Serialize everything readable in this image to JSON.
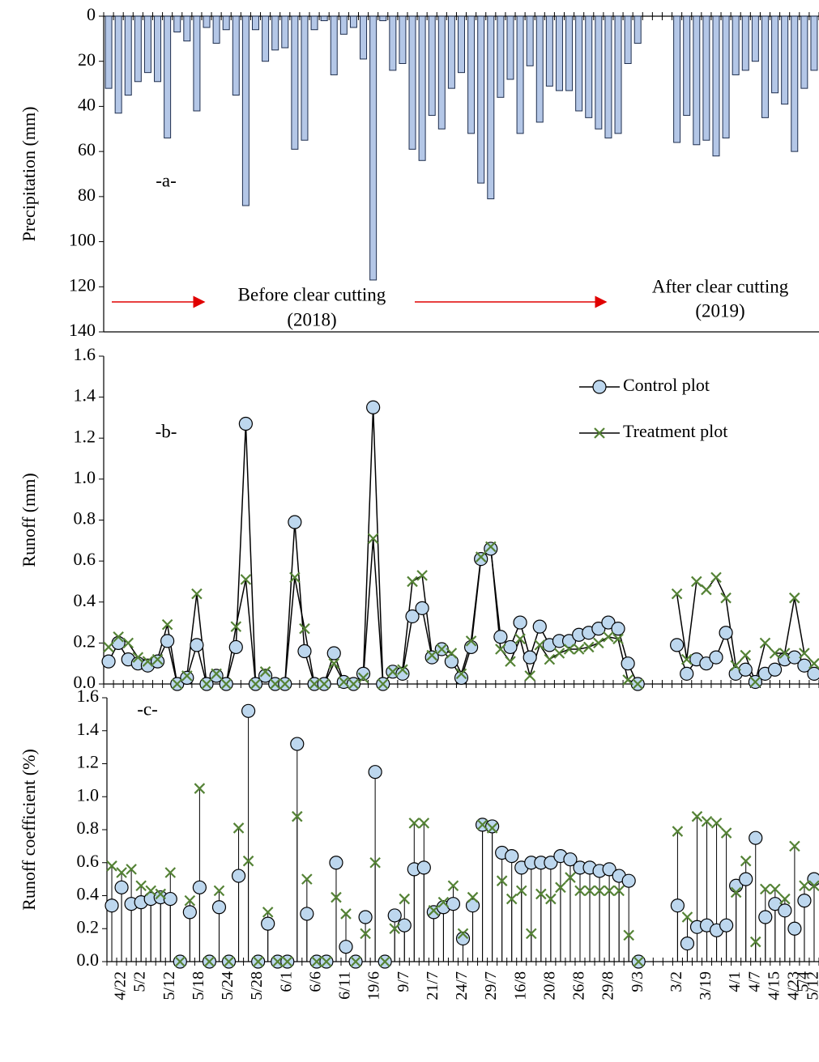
{
  "chart_data": [
    {
      "type": "bar",
      "y_label": "Precipitation (mm)",
      "yaxis_reversed": true,
      "annotations": [
        "-a-",
        "Before clear cutting",
        "(2018)",
        "After clear cutting",
        "(2019)"
      ],
      "color": "#b4c7e7",
      "values": [
        32,
        43,
        35,
        29,
        25,
        29,
        54,
        7,
        11,
        42,
        5,
        12,
        6,
        35,
        84,
        6,
        20,
        15,
        14,
        59,
        55,
        6,
        2,
        26,
        8,
        5,
        19,
        117,
        2,
        24,
        21,
        59,
        64,
        44,
        50,
        32,
        25,
        52,
        74,
        81,
        36,
        28,
        52,
        22,
        47,
        31,
        33,
        33,
        42,
        45,
        50,
        54,
        52,
        21,
        12,
        null,
        null,
        null,
        56,
        44,
        57,
        55,
        62,
        54,
        26,
        24,
        20,
        45,
        34,
        39,
        60,
        32,
        24
      ],
      "ylim": [
        0,
        140
      ],
      "yticks": [
        0,
        20,
        40,
        60,
        80,
        100,
        120,
        140
      ]
    },
    {
      "type": "line",
      "y_label": "Runoff (mm)",
      "annotations": [
        "-b-"
      ],
      "legend": "upper right",
      "series": [
        {
          "name": "Control plot",
          "color": "#bdd7ee",
          "line_color": "#000000",
          "marker": "o",
          "values": [
            0.11,
            0.2,
            0.12,
            0.1,
            0.09,
            0.11,
            0.21,
            0,
            0.03,
            0.19,
            0,
            0.04,
            0,
            0.18,
            1.27,
            0,
            0.04,
            0,
            0,
            0.79,
            0.16,
            0,
            0,
            0.15,
            0.01,
            0,
            0.05,
            1.35,
            0,
            0.06,
            0.05,
            0.33,
            0.37,
            0.13,
            0.17,
            0.11,
            0.03,
            0.18,
            0.61,
            0.66,
            0.23,
            0.18,
            0.3,
            0.13,
            0.28,
            0.19,
            0.21,
            0.21,
            0.24,
            0.25,
            0.27,
            0.3,
            0.27,
            0.1,
            0,
            null,
            null,
            null,
            0.19,
            0.05,
            0.12,
            0.1,
            0.13,
            0.25,
            0.05,
            0.07,
            0.01,
            0.05,
            0.07,
            0.12,
            0.13,
            0.09,
            0.05
          ]
        },
        {
          "name": "Treatment plot",
          "color": "#548235",
          "line_color": "#000000",
          "marker": "x",
          "values": [
            0.18,
            0.23,
            0.2,
            0.13,
            0.11,
            0.12,
            0.29,
            0,
            0.04,
            0.44,
            0,
            0.05,
            0,
            0.28,
            0.51,
            0,
            0.06,
            0,
            0,
            0.52,
            0.27,
            0,
            0,
            0.1,
            0.01,
            0,
            0.03,
            0.71,
            0,
            0.06,
            0.07,
            0.5,
            0.53,
            0.14,
            0.17,
            0.15,
            0.05,
            0.21,
            0.62,
            0.67,
            0.17,
            0.11,
            0.22,
            0.04,
            0.19,
            0.12,
            0.15,
            0.17,
            0.17,
            0.18,
            0.2,
            0.23,
            0.22,
            0.02,
            0,
            null,
            null,
            null,
            0.44,
            0.12,
            0.5,
            0.46,
            0.52,
            0.42,
            0.09,
            0.14,
            0.01,
            0.2,
            0.15,
            0.15,
            0.42,
            0.15,
            0.1
          ]
        }
      ],
      "ylim": [
        0,
        1.6
      ],
      "yticks": [
        {
          "value": 0,
          "label": "0.0"
        },
        0.2,
        0.4,
        0.6,
        0.8,
        {
          "value": 1,
          "label": "1.0"
        },
        1.2,
        1.4,
        1.6
      ]
    },
    {
      "type": "stem",
      "y_label": "Runoff coefficient (%)",
      "annotations": [
        "-c-"
      ],
      "categories": [
        null,
        "4/22",
        null,
        "5/2",
        null,
        null,
        "5/12",
        null,
        null,
        "5/18",
        null,
        null,
        "5/24",
        null,
        null,
        "5/28",
        null,
        null,
        "6/1",
        null,
        null,
        "6/6",
        null,
        null,
        "6/11",
        null,
        null,
        "19/6",
        null,
        null,
        "9/7",
        null,
        null,
        "21/7",
        null,
        null,
        "24/7",
        null,
        null,
        "29/7",
        null,
        null,
        "16/8",
        null,
        null,
        "20/8",
        null,
        null,
        "26/8",
        null,
        null,
        "29/8",
        null,
        null,
        "9/3",
        null,
        null,
        null,
        "3/2",
        null,
        null,
        "3/19",
        null,
        null,
        "4/1",
        null,
        "4/7",
        null,
        "4/15",
        null,
        "4/23",
        "5/4",
        "5/12"
      ],
      "series": [
        {
          "color": "#bdd7ee",
          "marker": "o",
          "values": [
            0.34,
            0.45,
            0.35,
            0.36,
            0.38,
            0.39,
            0.38,
            0,
            0.3,
            0.45,
            0,
            0.33,
            0,
            0.52,
            1.52,
            0,
            0.23,
            0,
            0,
            1.32,
            0.29,
            0,
            0,
            0.6,
            0.09,
            0,
            0.27,
            1.15,
            0,
            0.28,
            0.22,
            0.56,
            0.57,
            0.3,
            0.33,
            0.35,
            0.14,
            0.34,
            0.83,
            0.82,
            0.66,
            0.64,
            0.57,
            0.6,
            0.6,
            0.6,
            0.64,
            0.62,
            0.57,
            0.57,
            0.55,
            0.56,
            0.52,
            0.49,
            0,
            null,
            null,
            null,
            0.34,
            0.11,
            0.21,
            0.22,
            0.19,
            0.22,
            0.46,
            0.5,
            0.75,
            0.27,
            0.35,
            0.31,
            0.2,
            0.37,
            0.5
          ]
        },
        {
          "color": "#548235",
          "marker": "x",
          "values": [
            0.58,
            0.54,
            0.56,
            0.46,
            0.43,
            0.41,
            0.54,
            0,
            0.37,
            1.05,
            0,
            0.43,
            0,
            0.81,
            0.61,
            0,
            0.3,
            0,
            0,
            0.88,
            0.5,
            0,
            0,
            0.39,
            0.29,
            0,
            0.17,
            0.6,
            0,
            0.2,
            0.38,
            0.84,
            0.84,
            0.31,
            0.36,
            0.46,
            0.17,
            0.39,
            0.83,
            0.81,
            0.49,
            0.38,
            0.43,
            0.17,
            0.41,
            0.38,
            0.45,
            0.51,
            0.43,
            0.43,
            0.43,
            0.43,
            0.43,
            0.16,
            0,
            null,
            null,
            null,
            0.79,
            0.27,
            0.88,
            0.85,
            0.84,
            0.78,
            0.42,
            0.61,
            0.12,
            0.44,
            0.44,
            0.38,
            0.7,
            0.46,
            0.46
          ]
        }
      ],
      "ylim": [
        0,
        1.6
      ],
      "yticks": [
        {
          "value": 0,
          "label": "0.0"
        },
        0.2,
        0.4,
        0.6,
        0.8,
        {
          "value": 1,
          "label": "1.0"
        },
        1.2,
        1.4,
        1.6
      ]
    }
  ]
}
